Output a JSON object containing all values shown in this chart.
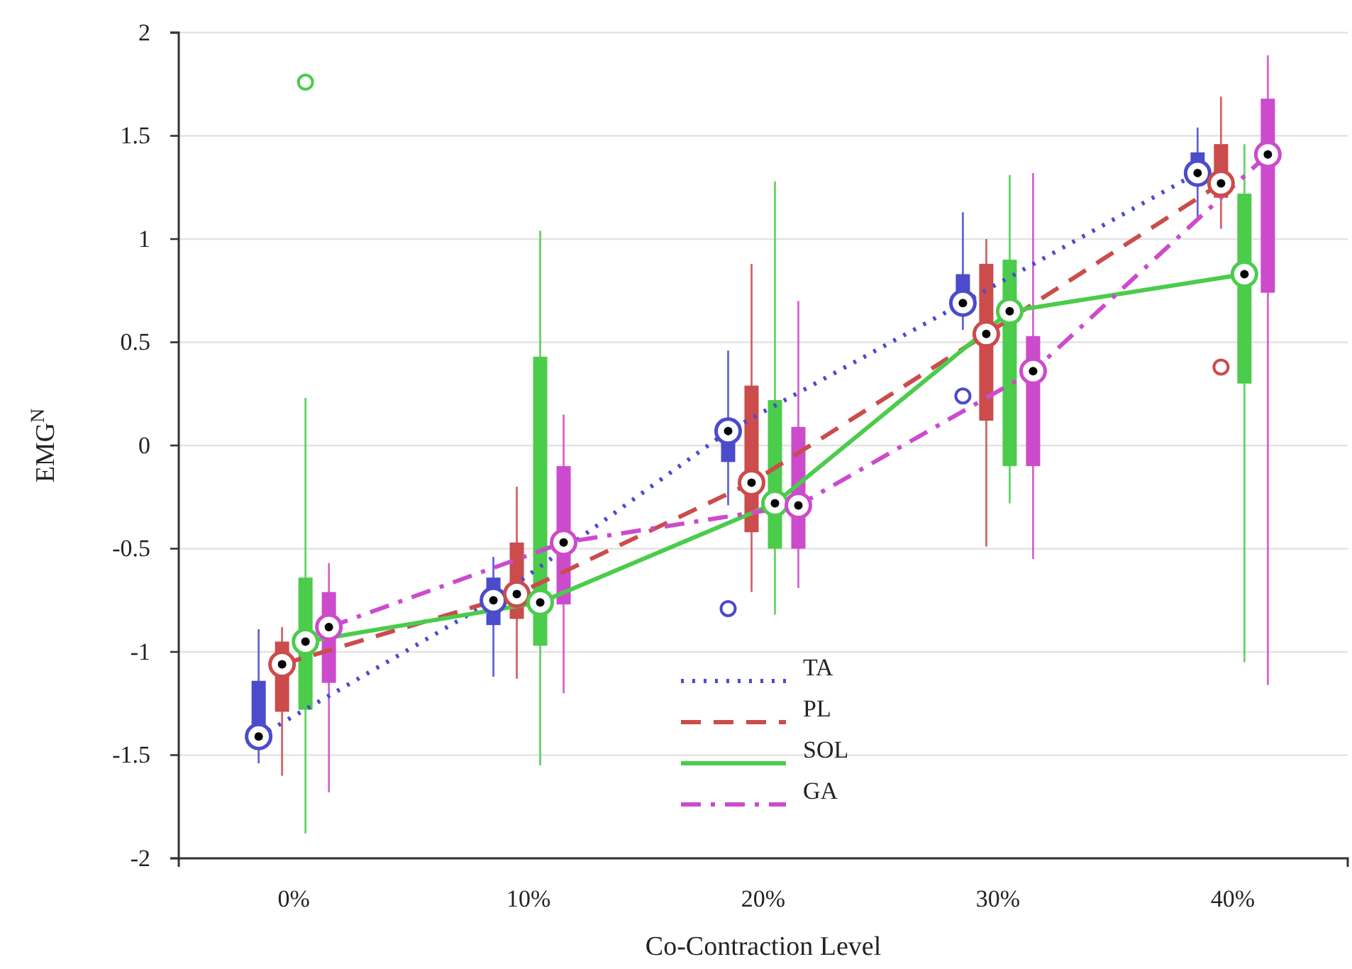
{
  "chart_data": {
    "type": "box",
    "xlabel": "Co-Contraction Level",
    "ylabel": "EMG$^{N}$",
    "categories": [
      "0%",
      "10%",
      "20%",
      "30%",
      "40%"
    ],
    "ylim": [
      -2,
      2
    ],
    "yticks": [
      {
        "value": -2,
        "label": "-2"
      },
      {
        "value": -1.5,
        "label": "-1.5"
      },
      {
        "value": -1,
        "label": "-1"
      },
      {
        "value": -0.5,
        "label": "-0.5"
      },
      {
        "value": 0,
        "label": "0"
      },
      {
        "value": 0.5,
        "label": "0.5"
      },
      {
        "value": 1,
        "label": "1"
      },
      {
        "value": 1.5,
        "label": "1.5"
      },
      {
        "value": 2,
        "label": "2"
      }
    ],
    "grid": "y",
    "legend": "bottom",
    "marker": "circle",
    "series": [
      {
        "type": "box",
        "color": "#4b4bcc",
        "boxes": [
          {
            "low": -1.54,
            "q1": -1.43,
            "median": -1.41,
            "q3": -1.14,
            "high": -0.89
          },
          {
            "low": -1.12,
            "q1": -0.87,
            "median": -0.75,
            "q3": -0.64,
            "high": -0.54
          },
          {
            "low": -0.29,
            "q1": -0.08,
            "median": 0.07,
            "q3": 0.13,
            "high": 0.46,
            "outliers": [
              -0.79
            ]
          },
          {
            "low": 0.56,
            "q1": 0.64,
            "median": 0.69,
            "q3": 0.83,
            "high": 1.13,
            "outliers": [
              0.24
            ]
          },
          {
            "low": 1.1,
            "q1": 1.27,
            "median": 1.32,
            "q3": 1.42,
            "high": 1.54
          }
        ]
      },
      {
        "type": "box",
        "color": "#cc4b4b",
        "boxes": [
          {
            "low": -1.6,
            "q1": -1.29,
            "median": -1.06,
            "q3": -0.95,
            "high": -0.88
          },
          {
            "low": -1.13,
            "q1": -0.84,
            "median": -0.72,
            "q3": -0.47,
            "high": -0.2
          },
          {
            "low": -0.71,
            "q1": -0.42,
            "median": -0.18,
            "q3": 0.29,
            "high": 0.88
          },
          {
            "low": -0.49,
            "q1": 0.12,
            "median": 0.54,
            "q3": 0.88,
            "high": 1.0
          },
          {
            "low": 1.05,
            "q1": 1.2,
            "median": 1.27,
            "q3": 1.46,
            "high": 1.69,
            "outliers": [
              0.38
            ]
          }
        ]
      },
      {
        "type": "box",
        "color": "#4bcc4b",
        "boxes": [
          {
            "low": -1.88,
            "q1": -1.28,
            "median": -0.95,
            "q3": -0.64,
            "high": 0.23,
            "outliers": [
              1.76
            ]
          },
          {
            "low": -1.55,
            "q1": -0.97,
            "median": -0.76,
            "q3": 0.43,
            "high": 1.04
          },
          {
            "low": -0.82,
            "q1": -0.5,
            "median": -0.28,
            "q3": 0.22,
            "high": 1.28
          },
          {
            "low": -0.28,
            "q1": -0.1,
            "median": 0.65,
            "q3": 0.9,
            "high": 1.31
          },
          {
            "low": -1.05,
            "q1": 0.3,
            "median": 0.83,
            "q3": 1.22,
            "high": 1.46
          }
        ]
      },
      {
        "type": "box",
        "color": "#cc4bcc",
        "boxes": [
          {
            "low": -1.68,
            "q1": -1.15,
            "median": -0.88,
            "q3": -0.71,
            "high": -0.57
          },
          {
            "low": -1.2,
            "q1": -0.77,
            "median": -0.47,
            "q3": -0.1,
            "high": 0.15
          },
          {
            "low": -0.69,
            "q1": -0.5,
            "median": -0.29,
            "q3": 0.09,
            "high": 0.7
          },
          {
            "low": -0.55,
            "q1": -0.1,
            "median": 0.36,
            "q3": 0.53,
            "high": 1.32
          },
          {
            "low": -1.16,
            "q1": 0.74,
            "median": 1.41,
            "q3": 1.68,
            "high": 1.89
          }
        ]
      },
      {
        "type": "line",
        "name": "TA",
        "color": "#4b4bcc",
        "line_style": "dotted",
        "values": [
          -1.41,
          -0.75,
          0.07,
          0.69,
          1.32
        ]
      },
      {
        "type": "line",
        "name": "PL",
        "color": "#cc4b4b",
        "line_style": "dashed",
        "values": [
          -1.06,
          -0.72,
          -0.18,
          0.54,
          1.27
        ]
      },
      {
        "type": "line",
        "name": "SOL",
        "color": "#4bcc4b",
        "line_style": "solid",
        "values": [
          -0.95,
          -0.76,
          -0.28,
          0.65,
          0.83
        ]
      },
      {
        "type": "line",
        "name": "GA",
        "color": "#cc4bcc",
        "line_style": "dashdot",
        "values": [
          -0.88,
          -0.47,
          -0.29,
          0.36,
          1.41
        ]
      }
    ]
  }
}
